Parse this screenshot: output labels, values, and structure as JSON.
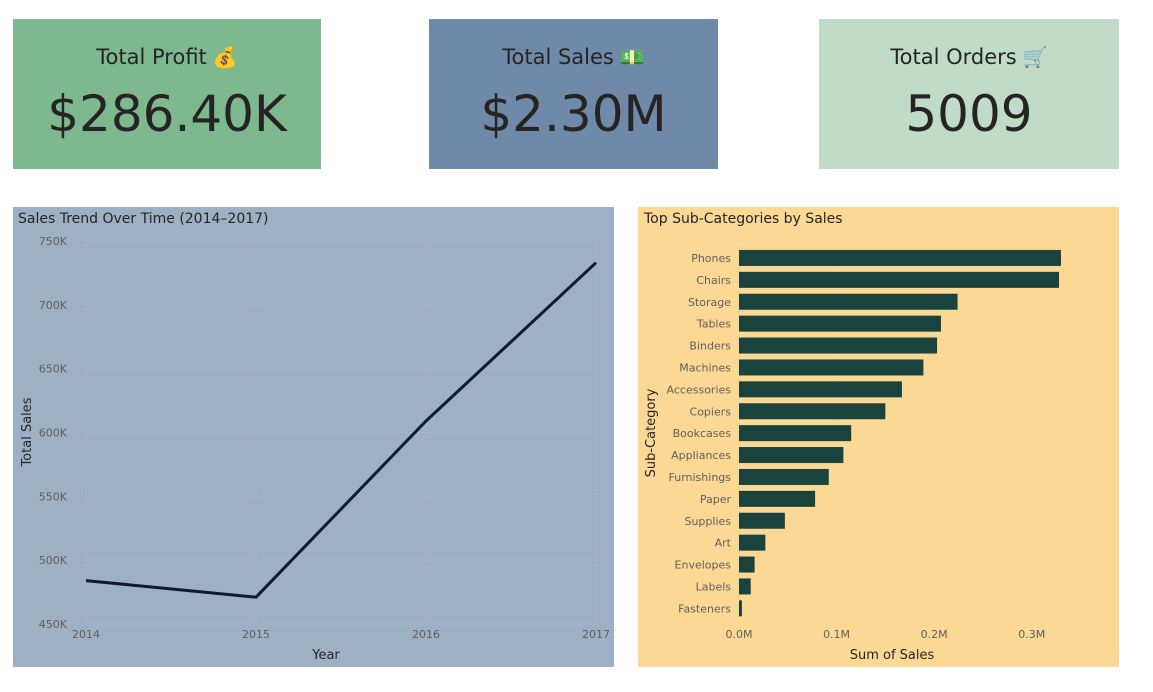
{
  "kpis": {
    "profit": {
      "label": "Total Profit",
      "emoji": "💰",
      "value": "$286.40K",
      "color": "#7db88e"
    },
    "sales": {
      "label": "Total Sales",
      "emoji": "💵",
      "value": "$2.30M",
      "color": "#6f89a8"
    },
    "orders": {
      "label": "Total Orders",
      "emoji": "🛒",
      "value": "5009",
      "color": "#c0dcc9"
    }
  },
  "colors": {
    "line_bg": "#9eb0c3",
    "line": "#0e1a33",
    "bar_bg": "#fcd895",
    "bar": "#1b433d",
    "axis_text": "#605e5c",
    "title_text": "#252423"
  },
  "chart_data": [
    {
      "type": "line",
      "title": "Sales Trend Over Time (2014–2017)",
      "xlabel": "Year",
      "ylabel": "Total Sales",
      "x": [
        "2014",
        "2015",
        "2016",
        "2017"
      ],
      "series": [
        {
          "values": [
            484000,
            471000,
            609000,
            733000
          ]
        }
      ],
      "ylim": [
        450000,
        750000
      ],
      "yticks": [
        450000,
        500000,
        550000,
        600000,
        650000,
        700000,
        750000
      ],
      "ytick_labels": [
        "450K",
        "500K",
        "550K",
        "600K",
        "650K",
        "700K",
        "750K"
      ],
      "grid": true
    },
    {
      "type": "bar",
      "orientation": "horizontal",
      "title": "Top Sub-Categories by Sales",
      "xlabel": "Sum of Sales",
      "ylabel": "Sub-Category",
      "categories": [
        "Phones",
        "Chairs",
        "Storage",
        "Tables",
        "Binders",
        "Machines",
        "Accessories",
        "Copiers",
        "Bookcases",
        "Appliances",
        "Furnishings",
        "Paper",
        "Supplies",
        "Art",
        "Envelopes",
        "Labels",
        "Fasteners"
      ],
      "values": [
        330000,
        328000,
        224000,
        207000,
        203000,
        189000,
        167000,
        150000,
        115000,
        107000,
        92000,
        78000,
        47000,
        27000,
        16000,
        12000,
        3000
      ],
      "xlim": [
        0,
        370000
      ],
      "xticks": [
        0,
        100000,
        200000,
        300000
      ],
      "xtick_labels": [
        "0.0M",
        "0.1M",
        "0.2M",
        "0.3M"
      ],
      "grid": true
    }
  ]
}
